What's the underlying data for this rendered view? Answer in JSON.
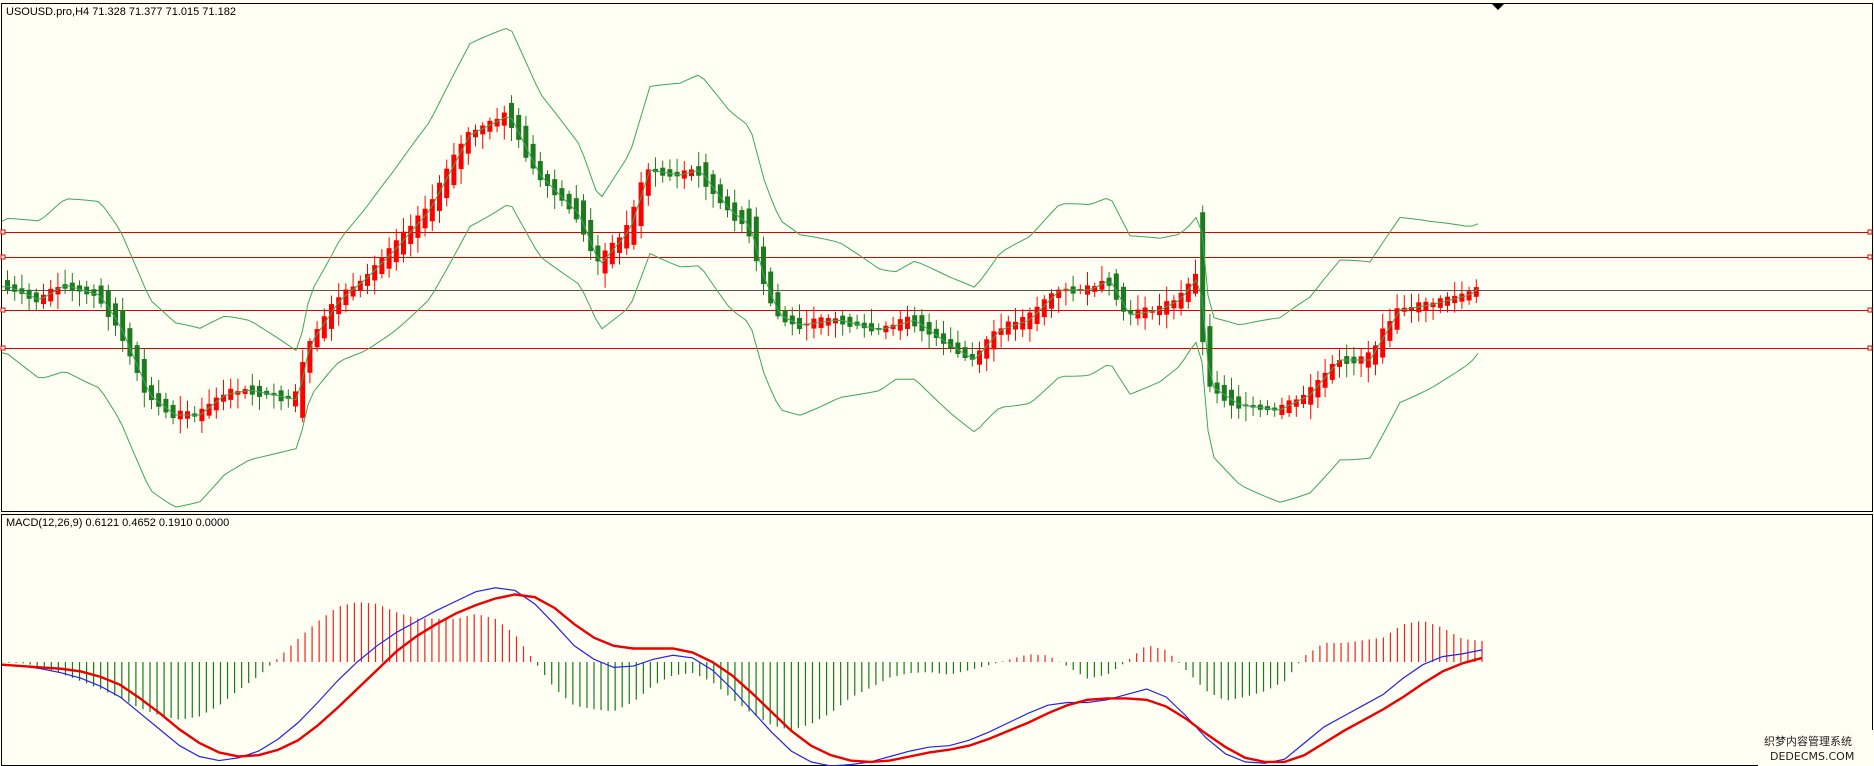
{
  "window": {
    "price_panel_label": "USOUSD.pro,H4  71.328 71.377 71.015 71.182",
    "macd_panel_label": "MACD(12,26,9) 0.6121 0.4652 0.1910 0.0000"
  },
  "watermark": {
    "line1": "织梦内容管理系统",
    "line2": "DEDECMS.COM"
  },
  "colors": {
    "background": "#fffff4",
    "bull_candle": "#ff0000",
    "bear_candle": "#1e7a1e",
    "bollinger": "#3aa858",
    "horizontal_levels": "#dd0000",
    "current_price_line": "#555555",
    "macd_line": "#2222ee",
    "signal_line": "#ee0000",
    "hist_positive": "#ee2222",
    "hist_negative": "#1a7a1a"
  },
  "chart_data": [
    {
      "type": "candlestick",
      "symbol": "USOUSD.pro",
      "timeframe": "H4",
      "last_bar": {
        "open": 71.328,
        "high": 71.377,
        "low": 71.015,
        "close": 71.182
      },
      "indicators": [
        "Bollinger Bands"
      ],
      "horizontal_levels_count": 4
    },
    {
      "type": "line",
      "indicator": "MACD(12,26,9)",
      "values": [
        0.6121,
        0.4652,
        0.191,
        0.0
      ],
      "series": [
        {
          "values": [
            -2,
            -3,
            -5,
            -8,
            -12,
            -18,
            -26,
            -38,
            -50,
            -62,
            -70,
            -73,
            -71,
            -66,
            -57,
            -45,
            -30,
            -14,
            0,
            12,
            22,
            30,
            38,
            45,
            52,
            55,
            53,
            43,
            28,
            12,
            2,
            -4,
            -3,
            2,
            5,
            3,
            -6,
            -20,
            -36,
            -52,
            -66,
            -74,
            -77,
            -76,
            -74,
            -70,
            -66,
            -63,
            -62,
            -58,
            -52,
            -45,
            -38,
            -32,
            -30,
            -30,
            -28,
            -24,
            -20,
            -26,
            -40,
            -56,
            -68,
            -74,
            -75,
            -72,
            -60,
            -48,
            -40,
            -32,
            -24,
            -12,
            -2,
            4,
            6,
            9
          ]
        },
        {
          "values": [
            -2,
            -3,
            -4,
            -5,
            -7,
            -11,
            -17,
            -27,
            -38,
            -50,
            -60,
            -67,
            -70,
            -69,
            -65,
            -58,
            -47,
            -34,
            -20,
            -6,
            8,
            19,
            28,
            36,
            42,
            47,
            50,
            48,
            40,
            28,
            18,
            12,
            10,
            10,
            10,
            7,
            0,
            -10,
            -23,
            -37,
            -51,
            -62,
            -69,
            -73,
            -74,
            -73,
            -70,
            -67,
            -65,
            -62,
            -57,
            -51,
            -45,
            -38,
            -32,
            -28,
            -27,
            -27,
            -28,
            -33,
            -42,
            -53,
            -63,
            -71,
            -74,
            -74,
            -69,
            -60,
            -51,
            -43,
            -35,
            -26,
            -16,
            -7,
            -1,
            3
          ]
        }
      ]
    }
  ]
}
